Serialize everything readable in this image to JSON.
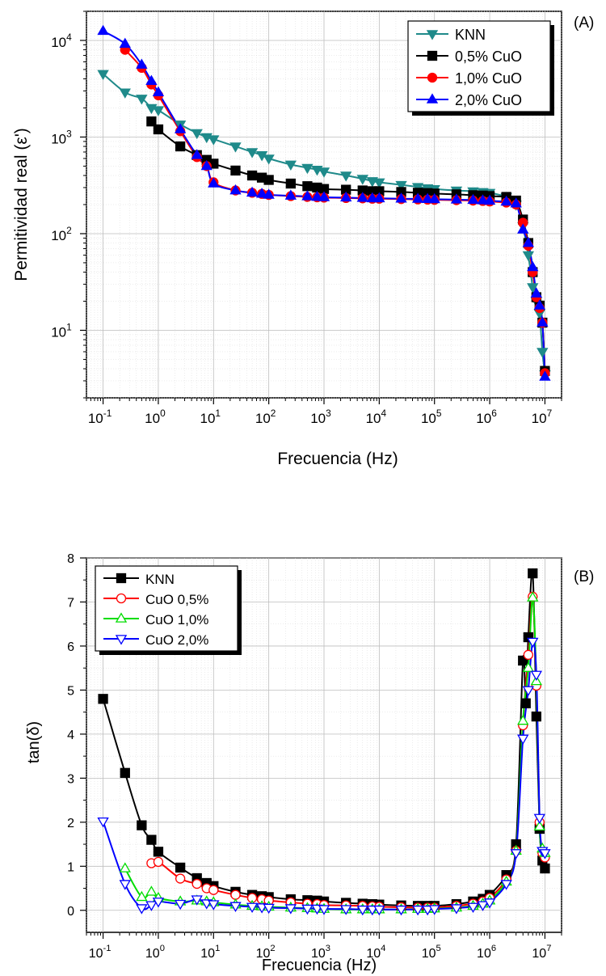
{
  "chart_data": [
    {
      "type": "line",
      "panel_label": "(A)",
      "xlabel": "Frecuencia (Hz)",
      "ylabel": "Permitividad real (ε')",
      "xscale": "log",
      "yscale": "log",
      "xlim": [
        0.05,
        20000000
      ],
      "ylim": [
        2,
        20000
      ],
      "x_ticks": [
        {
          "value": 0.1,
          "base": "10",
          "exp": "-1"
        },
        {
          "value": 1,
          "base": "10",
          "exp": "0"
        },
        {
          "value": 10,
          "base": "10",
          "exp": "1"
        },
        {
          "value": 100,
          "base": "10",
          "exp": "2"
        },
        {
          "value": 1000,
          "base": "10",
          "exp": "3"
        },
        {
          "value": 10000,
          "base": "10",
          "exp": "4"
        },
        {
          "value": 100000,
          "base": "10",
          "exp": "5"
        },
        {
          "value": 1000000,
          "base": "10",
          "exp": "6"
        },
        {
          "value": 10000000,
          "base": "10",
          "exp": "7"
        }
      ],
      "y_ticks": [
        {
          "value": 10,
          "base": "10",
          "exp": "1"
        },
        {
          "value": 100,
          "base": "10",
          "exp": "2"
        },
        {
          "value": 1000,
          "base": "10",
          "exp": "3"
        },
        {
          "value": 10000,
          "base": "10",
          "exp": "4"
        }
      ],
      "grid": true,
      "legend_position": "top-right",
      "series": [
        {
          "name": "KNN",
          "color": "#1f8a8a",
          "marker": "triangle-down",
          "filled": true,
          "x": [
            0.1,
            0.25,
            0.5,
            0.75,
            1,
            2.5,
            5,
            7.5,
            10,
            25,
            50,
            75,
            100,
            250,
            500,
            750,
            1000,
            2500,
            5000,
            7500,
            10000,
            25000,
            50000,
            75000,
            100000,
            250000,
            500000,
            750000,
            1000000,
            2000000,
            3000000,
            4000000,
            5000000,
            6000000,
            7000000,
            8000000,
            9000000,
            10000000
          ],
          "y": [
            4500,
            2900,
            2500,
            2000,
            1900,
            1350,
            1100,
            1000,
            950,
            800,
            700,
            650,
            600,
            520,
            480,
            460,
            440,
            400,
            370,
            350,
            340,
            320,
            305,
            295,
            290,
            280,
            275,
            270,
            265,
            240,
            200,
            120,
            60,
            28,
            20,
            15,
            6,
            3.5
          ]
        },
        {
          "name": "0,5% CuO",
          "color": "#000000",
          "marker": "square",
          "filled": true,
          "x": [
            0.75,
            1,
            2.5,
            5,
            7.5,
            10,
            25,
            50,
            75,
            100,
            250,
            500,
            750,
            1000,
            2500,
            5000,
            7500,
            10000,
            25000,
            50000,
            75000,
            100000,
            250000,
            500000,
            750000,
            1000000,
            2000000,
            3000000,
            4000000,
            5000000,
            6000000,
            7000000,
            8000000,
            9000000,
            10000000
          ],
          "y": [
            1450,
            1200,
            800,
            650,
            580,
            530,
            450,
            400,
            380,
            360,
            330,
            310,
            300,
            290,
            285,
            280,
            275,
            275,
            270,
            265,
            263,
            260,
            255,
            250,
            248,
            245,
            240,
            220,
            140,
            80,
            40,
            22,
            18,
            12,
            3.8
          ]
        },
        {
          "name": "1,0% CuO",
          "color": "#ff0000",
          "marker": "circle",
          "filled": true,
          "x": [
            0.25,
            0.5,
            0.75,
            1,
            2.5,
            5,
            7.5,
            10,
            25,
            50,
            75,
            100,
            250,
            500,
            750,
            1000,
            2500,
            5000,
            7500,
            10000,
            25000,
            50000,
            75000,
            100000,
            250000,
            500000,
            750000,
            1000000,
            2000000,
            3000000,
            4000000,
            5000000,
            6000000,
            7000000,
            8000000,
            9000000,
            10000000
          ],
          "y": [
            8000,
            5200,
            3500,
            2700,
            1150,
            620,
            500,
            340,
            280,
            265,
            258,
            252,
            245,
            240,
            238,
            236,
            234,
            232,
            230,
            230,
            228,
            226,
            225,
            224,
            222,
            220,
            218,
            215,
            210,
            200,
            130,
            75,
            40,
            22,
            17,
            12,
            3.6
          ]
        },
        {
          "name": "2,0% CuO",
          "color": "#0000ff",
          "marker": "triangle-up",
          "filled": true,
          "x": [
            0.1,
            0.25,
            0.5,
            0.75,
            1,
            2.5,
            5,
            7.5,
            10,
            25,
            50,
            75,
            100,
            250,
            500,
            750,
            1000,
            2500,
            5000,
            7500,
            10000,
            25000,
            50000,
            75000,
            100000,
            250000,
            500000,
            750000,
            1000000,
            2000000,
            3000000,
            4000000,
            5000000,
            6000000,
            7000000,
            8000000,
            9000000,
            10000000
          ],
          "y": [
            12500,
            9200,
            5600,
            3800,
            2900,
            1200,
            650,
            500,
            330,
            280,
            265,
            258,
            252,
            247,
            243,
            240,
            238,
            236,
            234,
            232,
            232,
            230,
            229,
            228,
            227,
            225,
            223,
            221,
            219,
            214,
            205,
            110,
            80,
            45,
            24,
            18,
            12,
            3.3
          ]
        }
      ]
    },
    {
      "type": "line",
      "panel_label": "(B)",
      "xlabel": "Frecuencia (Hz)",
      "ylabel": "tan(δ)",
      "xscale": "log",
      "yscale": "linear",
      "xlim": [
        0.05,
        20000000
      ],
      "ylim": [
        -0.5,
        8
      ],
      "x_ticks": [
        {
          "value": 0.1,
          "base": "10",
          "exp": "-1"
        },
        {
          "value": 1,
          "base": "10",
          "exp": "0"
        },
        {
          "value": 10,
          "base": "10",
          "exp": "1"
        },
        {
          "value": 100,
          "base": "10",
          "exp": "2"
        },
        {
          "value": 1000,
          "base": "10",
          "exp": "3"
        },
        {
          "value": 10000,
          "base": "10",
          "exp": "4"
        },
        {
          "value": 100000,
          "base": "10",
          "exp": "5"
        },
        {
          "value": 1000000,
          "base": "10",
          "exp": "6"
        },
        {
          "value": 10000000,
          "base": "10",
          "exp": "7"
        }
      ],
      "y_ticks": [
        {
          "value": 0,
          "label": "0"
        },
        {
          "value": 1,
          "label": "1"
        },
        {
          "value": 2,
          "label": "2"
        },
        {
          "value": 3,
          "label": "3"
        },
        {
          "value": 4,
          "label": "4"
        },
        {
          "value": 5,
          "label": "5"
        },
        {
          "value": 6,
          "label": "6"
        },
        {
          "value": 7,
          "label": "7"
        },
        {
          "value": 8,
          "label": "8"
        }
      ],
      "grid": true,
      "legend_position": "top-left",
      "series": [
        {
          "name": "KNN",
          "color": "#000000",
          "marker": "square",
          "filled": true,
          "x": [
            0.1,
            0.25,
            0.5,
            0.75,
            1,
            2.5,
            5,
            7.5,
            10,
            25,
            50,
            75,
            100,
            250,
            500,
            750,
            1000,
            2500,
            5000,
            7500,
            10000,
            25000,
            50000,
            75000,
            100000,
            250000,
            500000,
            750000,
            1000000,
            2000000,
            3000000,
            4000000,
            4500000,
            5000000,
            6000000,
            7000000,
            8000000,
            9000000,
            10000000
          ],
          "y": [
            4.8,
            3.12,
            1.93,
            1.6,
            1.33,
            0.97,
            0.73,
            0.62,
            0.55,
            0.42,
            0.35,
            0.32,
            0.3,
            0.25,
            0.23,
            0.22,
            0.2,
            0.17,
            0.15,
            0.14,
            0.13,
            0.11,
            0.1,
            0.1,
            0.1,
            0.14,
            0.2,
            0.26,
            0.35,
            0.8,
            1.5,
            5.67,
            4.7,
            6.2,
            7.65,
            4.4,
            1.85,
            1.13,
            0.95
          ]
        },
        {
          "name": "CuO 0,5%",
          "color": "#ff0000",
          "marker": "circle",
          "filled": false,
          "x": [
            0.75,
            1,
            2.5,
            5,
            7.5,
            10,
            25,
            50,
            75,
            100,
            250,
            500,
            750,
            1000,
            2500,
            5000,
            7500,
            10000,
            25000,
            50000,
            75000,
            100000,
            250000,
            500000,
            750000,
            1000000,
            2000000,
            3000000,
            4000000,
            5000000,
            6000000,
            7000000,
            8000000,
            9000000,
            10000000
          ],
          "y": [
            1.07,
            1.1,
            0.72,
            0.6,
            0.5,
            0.46,
            0.35,
            0.28,
            0.25,
            0.22,
            0.18,
            0.15,
            0.14,
            0.12,
            0.11,
            0.1,
            0.09,
            0.08,
            0.07,
            0.06,
            0.06,
            0.06,
            0.1,
            0.15,
            0.2,
            0.28,
            0.7,
            1.35,
            4.2,
            5.8,
            7.12,
            5.1,
            2.0,
            1.3,
            1.2
          ]
        },
        {
          "name": "CuO 1,0%",
          "color": "#00dd00",
          "marker": "triangle-up",
          "filled": false,
          "x": [
            0.25,
            0.5,
            0.75,
            1,
            2.5,
            5,
            7.5,
            10,
            25,
            50,
            75,
            100,
            250,
            500,
            750,
            1000,
            2500,
            5000,
            7500,
            10000,
            25000,
            50000,
            75000,
            100000,
            250000,
            500000,
            750000,
            1000000,
            2000000,
            3000000,
            4000000,
            5000000,
            6000000,
            7000000,
            8000000,
            9000000,
            10000000
          ],
          "y": [
            0.95,
            0.3,
            0.42,
            0.28,
            0.2,
            0.22,
            0.2,
            0.18,
            0.13,
            0.1,
            0.09,
            0.08,
            0.06,
            0.05,
            0.04,
            0.03,
            0.02,
            0.02,
            0.02,
            0.02,
            0.02,
            0.03,
            0.03,
            0.04,
            0.06,
            0.1,
            0.15,
            0.22,
            0.65,
            1.35,
            4.3,
            5.5,
            7.1,
            5.2,
            1.9,
            1.4,
            1.3
          ]
        },
        {
          "name": "CuO 2,0%",
          "color": "#0000ff",
          "marker": "triangle-down",
          "filled": false,
          "x": [
            0.1,
            0.25,
            0.5,
            0.75,
            1,
            2.5,
            5,
            7.5,
            10,
            25,
            50,
            75,
            100,
            250,
            500,
            750,
            1000,
            2500,
            5000,
            7500,
            10000,
            25000,
            50000,
            75000,
            100000,
            250000,
            500000,
            750000,
            1000000,
            2000000,
            3000000,
            4000000,
            5000000,
            6000000,
            7000000,
            8000000,
            9000000,
            10000000
          ],
          "y": [
            2.02,
            0.6,
            0.05,
            0.12,
            0.2,
            0.15,
            0.25,
            0.16,
            0.14,
            0.1,
            0.08,
            0.07,
            0.06,
            0.05,
            0.04,
            0.04,
            0.03,
            0.03,
            0.02,
            0.02,
            0.02,
            0.02,
            0.02,
            0.02,
            0.03,
            0.05,
            0.08,
            0.12,
            0.18,
            0.6,
            1.3,
            3.9,
            5.0,
            6.1,
            5.35,
            2.1,
            1.35,
            1.3
          ]
        }
      ]
    }
  ]
}
